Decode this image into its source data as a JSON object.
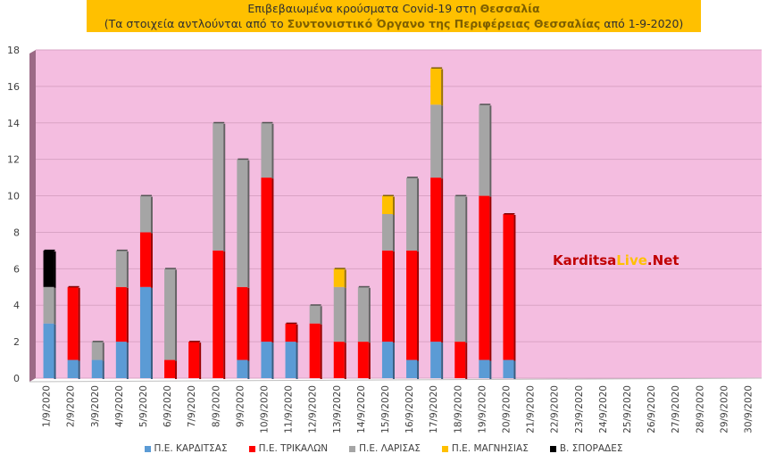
{
  "title": {
    "line1_prefix": "Επιβεβαιωμένα κρούσματα Covid-19 στη ",
    "line1_bold": "Θεσσαλία",
    "line2_prefix": "(Τα στοιχεία αντλούνται από το ",
    "line2_bold": "Συντονιστικό Όργανο της Περιφέρειας Θεσσαλίας",
    "line2_suffix": " από 1-9-2020)"
  },
  "watermark": {
    "part1": "Karditsa",
    "part2": "Live",
    "part3": ".Net",
    "colors": {
      "part1": "#c00000",
      "part2": "#ffc000",
      "part3": "#c00000"
    }
  },
  "chart_data": {
    "type": "bar",
    "stacked": true,
    "title": "",
    "xlabel": "",
    "ylabel": "",
    "ylim": [
      0,
      18
    ],
    "yticks": [
      0,
      2,
      4,
      6,
      8,
      10,
      12,
      14,
      16,
      18
    ],
    "grid": true,
    "legend_position": "bottom",
    "background_color": "#f4bde0",
    "categories": [
      "1/9/2020",
      "2/9/2020",
      "3/9/2020",
      "4/9/2020",
      "5/9/2020",
      "6/9/2020",
      "7/9/2020",
      "8/9/2020",
      "9/9/2020",
      "10/9/2020",
      "11/9/2020",
      "12/9/2020",
      "13/9/2020",
      "14/9/2020",
      "15/9/2020",
      "16/9/2020",
      "17/9/2020",
      "18/9/2020",
      "19/9/2020",
      "20/9/2020",
      "21/9/2020",
      "22/9/2020",
      "23/9/2020",
      "24/9/2020",
      "25/9/2020",
      "26/9/2020",
      "27/9/2020",
      "28/9/2020",
      "29/9/2020",
      "30/9/2020"
    ],
    "series": [
      {
        "name": "Π.Ε. ΚΑΡΔΙΤΣΑΣ",
        "color": "#5b9bd5",
        "values": [
          3,
          1,
          1,
          2,
          5,
          0,
          0,
          0,
          1,
          2,
          2,
          0,
          0,
          0,
          2,
          1,
          2,
          0,
          1,
          1,
          0,
          0,
          0,
          0,
          0,
          0,
          0,
          0,
          0,
          0
        ]
      },
      {
        "name": "Π.Ε. ΤΡΙΚΑΛΩΝ",
        "color": "#ff0000",
        "values": [
          0,
          4,
          0,
          3,
          3,
          1,
          2,
          7,
          4,
          9,
          1,
          3,
          2,
          2,
          5,
          6,
          9,
          2,
          9,
          8,
          0,
          0,
          0,
          0,
          0,
          0,
          0,
          0,
          0,
          0
        ]
      },
      {
        "name": "Π.Ε. ΛΑΡΙΣΑΣ",
        "color": "#a5a5a5",
        "values": [
          2,
          0,
          1,
          2,
          2,
          5,
          0,
          7,
          7,
          3,
          0,
          1,
          3,
          3,
          2,
          4,
          4,
          8,
          5,
          0,
          0,
          0,
          0,
          0,
          0,
          0,
          0,
          0,
          0,
          0
        ]
      },
      {
        "name": "Π.Ε. ΜΑΓΝΗΣΙΑΣ",
        "color": "#ffc000",
        "values": [
          0,
          0,
          0,
          0,
          0,
          0,
          0,
          0,
          0,
          0,
          0,
          0,
          1,
          0,
          1,
          0,
          2,
          0,
          0,
          0,
          0,
          0,
          0,
          0,
          0,
          0,
          0,
          0,
          0,
          0
        ]
      },
      {
        "name": "Β. ΣΠΟΡΑΔΕΣ",
        "color": "#000000",
        "values": [
          2,
          0,
          0,
          0,
          0,
          0,
          0,
          0,
          0,
          0,
          0,
          0,
          0,
          0,
          0,
          0,
          0,
          0,
          0,
          0,
          0,
          0,
          0,
          0,
          0,
          0,
          0,
          0,
          0,
          0
        ]
      }
    ]
  }
}
